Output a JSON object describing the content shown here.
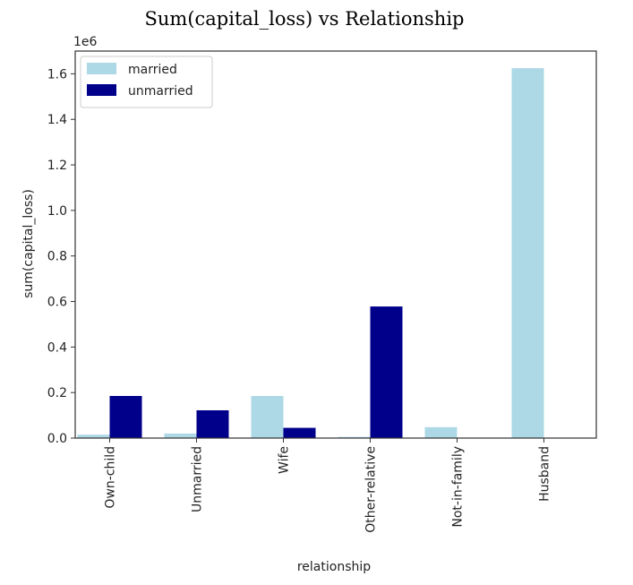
{
  "chart_data": {
    "type": "bar",
    "title": "Sum(capital_loss) vs Relationship",
    "xlabel": "relationship",
    "ylabel": "sum(capital_loss)",
    "y_offset_label": "1e6",
    "ylim": [
      0,
      1700000
    ],
    "yticks": [
      0,
      200000,
      400000,
      600000,
      800000,
      1000000,
      1200000,
      1400000,
      1600000
    ],
    "ytick_labels": [
      "0.0",
      "0.2",
      "0.4",
      "0.6",
      "0.8",
      "1.0",
      "1.2",
      "1.4",
      "1.6"
    ],
    "categories": [
      "Own-child",
      "Unmarried",
      "Wife",
      "Other-relative",
      "Not-in-family",
      "Husband"
    ],
    "series": [
      {
        "name": "married",
        "color": "#add8e6",
        "values": [
          15000,
          20000,
          185000,
          5000,
          48000,
          1625000
        ]
      },
      {
        "name": "unmarried",
        "color": "#00008b",
        "values": [
          185000,
          122000,
          45000,
          578000,
          0,
          0
        ]
      }
    ],
    "legend_position": "top-left",
    "grid": false
  }
}
